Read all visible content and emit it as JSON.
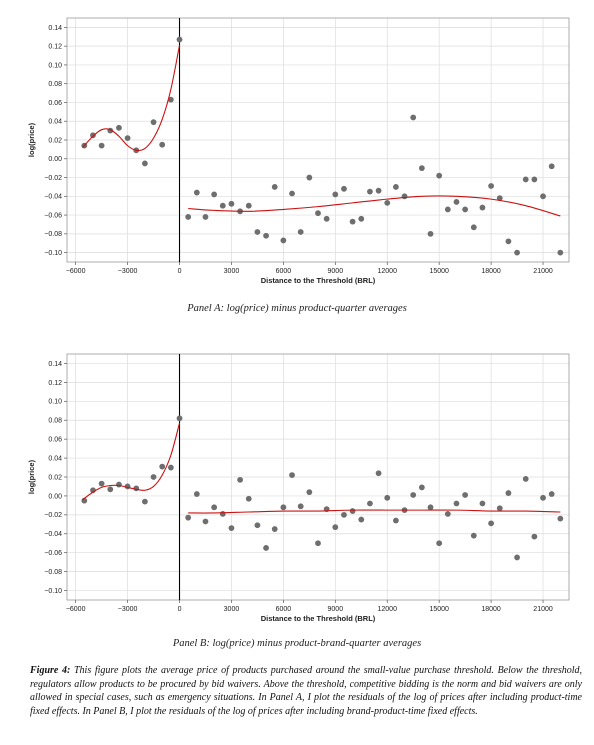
{
  "chart_data": [
    {
      "type": "scatter",
      "panel": "A",
      "caption": "Panel A: log(price) minus product-quarter averages",
      "xlabel": "Distance to the Threshold (BRL)",
      "ylabel": "log(price)",
      "xlim": [
        -6500,
        22500
      ],
      "ylim": [
        -0.11,
        0.15
      ],
      "xticks": [
        -6000,
        -3000,
        0,
        3000,
        6000,
        9000,
        12000,
        15000,
        18000,
        21000
      ],
      "xtick_labels": [
        "−6000",
        "−3000",
        "0",
        "3000",
        "6000",
        "9000",
        "12000",
        "15000",
        "18000",
        "21000"
      ],
      "yticks": [
        -0.1,
        -0.08,
        -0.06,
        -0.04,
        -0.02,
        0.0,
        0.02,
        0.04,
        0.06,
        0.08,
        0.1,
        0.12,
        0.14
      ],
      "ytick_labels": [
        "−0.10",
        "−0.08",
        "−0.06",
        "−0.04",
        "−0.02",
        "0.00",
        "0.02",
        "0.04",
        "0.06",
        "0.08",
        "0.10",
        "0.12",
        "0.14"
      ],
      "grid": true,
      "threshold_x": 0,
      "points": {
        "x": [
          -5500,
          -5000,
          -4500,
          -4000,
          -3500,
          -3000,
          -2500,
          -2000,
          -1500,
          -1000,
          -500,
          0,
          500,
          1000,
          1500,
          2000,
          2500,
          3000,
          3500,
          4000,
          4500,
          5000,
          5500,
          6000,
          6500,
          7000,
          7500,
          8000,
          8500,
          9000,
          9500,
          10000,
          10500,
          11000,
          11500,
          12000,
          12500,
          13000,
          13500,
          14000,
          14500,
          15000,
          15500,
          16000,
          16500,
          17000,
          17500,
          18000,
          18500,
          19000,
          19500,
          20000,
          20500,
          21000,
          21500,
          22000
        ],
        "y": [
          0.014,
          0.025,
          0.014,
          0.03,
          0.033,
          0.022,
          0.009,
          -0.005,
          0.039,
          0.015,
          0.063,
          0.127,
          -0.062,
          -0.036,
          -0.062,
          -0.038,
          -0.05,
          -0.048,
          -0.056,
          -0.05,
          -0.078,
          -0.082,
          -0.03,
          -0.087,
          -0.037,
          -0.078,
          -0.02,
          -0.058,
          -0.064,
          -0.038,
          -0.032,
          -0.067,
          -0.064,
          -0.035,
          -0.034,
          -0.047,
          -0.03,
          -0.04,
          0.044,
          -0.01,
          -0.08,
          -0.018,
          -0.054,
          -0.046,
          -0.054,
          -0.073,
          -0.052,
          -0.029,
          -0.042,
          -0.088,
          -0.1,
          -0.022,
          -0.022,
          -0.04,
          -0.008,
          -0.1
        ]
      },
      "fit_left": {
        "x": [
          -5600,
          -5000,
          -4500,
          -4000,
          -3500,
          -3000,
          -2500,
          -2000,
          -1500,
          -1000,
          -500,
          0
        ],
        "y": [
          0.012,
          0.024,
          0.031,
          0.031,
          0.024,
          0.014,
          0.009,
          0.011,
          0.022,
          0.042,
          0.074,
          0.121
        ]
      },
      "fit_right": {
        "x": [
          500,
          2000,
          4000,
          6000,
          8000,
          10000,
          12000,
          14000,
          16000,
          18000,
          20000,
          22000
        ],
        "y": [
          -0.053,
          -0.055,
          -0.056,
          -0.054,
          -0.051,
          -0.047,
          -0.043,
          -0.04,
          -0.04,
          -0.043,
          -0.05,
          -0.061
        ]
      }
    },
    {
      "type": "scatter",
      "panel": "B",
      "caption": "Panel B: log(price) minus product-brand-quarter averages",
      "xlabel": "Distance to the Threshold (BRL)",
      "ylabel": "log(price)",
      "xlim": [
        -6500,
        22500
      ],
      "ylim": [
        -0.11,
        0.15
      ],
      "xticks": [
        -6000,
        -3000,
        0,
        3000,
        6000,
        9000,
        12000,
        15000,
        18000,
        21000
      ],
      "xtick_labels": [
        "−6000",
        "−3000",
        "0",
        "3000",
        "6000",
        "9000",
        "12000",
        "15000",
        "18000",
        "21000"
      ],
      "yticks": [
        -0.1,
        -0.08,
        -0.06,
        -0.04,
        -0.02,
        0.0,
        0.02,
        0.04,
        0.06,
        0.08,
        0.1,
        0.12,
        0.14
      ],
      "ytick_labels": [
        "−0.10",
        "−0.08",
        "−0.06",
        "−0.04",
        "−0.02",
        "0.00",
        "0.02",
        "0.04",
        "0.06",
        "0.08",
        "0.10",
        "0.12",
        "0.14"
      ],
      "grid": true,
      "threshold_x": 0,
      "points": {
        "x": [
          -5500,
          -5000,
          -4500,
          -4000,
          -3500,
          -3000,
          -2500,
          -2000,
          -1500,
          -1000,
          -500,
          0,
          500,
          1000,
          1500,
          2000,
          2500,
          3000,
          3500,
          4000,
          4500,
          5000,
          5500,
          6000,
          6500,
          7000,
          7500,
          8000,
          8500,
          9000,
          9500,
          10000,
          10500,
          11000,
          11500,
          12000,
          12500,
          13000,
          13500,
          14000,
          14500,
          15000,
          15500,
          16000,
          16500,
          17000,
          17500,
          18000,
          18500,
          19000,
          19500,
          20000,
          20500,
          21000,
          21500,
          22000
        ],
        "y": [
          -0.005,
          0.006,
          0.013,
          0.007,
          0.012,
          0.01,
          0.008,
          -0.006,
          0.02,
          0.031,
          0.03,
          0.082,
          -0.023,
          0.002,
          -0.027,
          -0.012,
          -0.019,
          -0.034,
          0.017,
          -0.003,
          -0.031,
          -0.055,
          -0.035,
          -0.012,
          0.022,
          -0.011,
          0.004,
          -0.05,
          -0.014,
          -0.033,
          -0.02,
          -0.016,
          -0.025,
          -0.008,
          0.024,
          -0.002,
          -0.026,
          -0.015,
          0.001,
          0.009,
          -0.012,
          -0.05,
          -0.019,
          -0.008,
          0.001,
          -0.042,
          -0.008,
          -0.029,
          -0.013,
          0.003,
          -0.065,
          0.018,
          -0.043,
          -0.002,
          0.002,
          -0.024
        ]
      },
      "fit_left": {
        "x": [
          -5600,
          -5000,
          -4500,
          -4000,
          -3500,
          -3000,
          -2500,
          -2000,
          -1500,
          -1000,
          -500,
          0
        ],
        "y": [
          -0.004,
          0.004,
          0.009,
          0.011,
          0.011,
          0.009,
          0.007,
          0.006,
          0.01,
          0.022,
          0.043,
          0.077
        ]
      },
      "fit_right": {
        "x": [
          500,
          2000,
          4000,
          6000,
          8000,
          10000,
          12000,
          14000,
          16000,
          18000,
          20000,
          22000
        ],
        "y": [
          -0.018,
          -0.018,
          -0.017,
          -0.016,
          -0.016,
          -0.015,
          -0.015,
          -0.015,
          -0.015,
          -0.016,
          -0.016,
          -0.017
        ]
      }
    }
  ],
  "colors": {
    "point": "#6e6e6e",
    "fit": "#cc1111",
    "threshold": "#000000",
    "grid": "#dcdcdc",
    "frame": "#9a9a9a"
  },
  "figure_caption": {
    "label": "Figure 4:",
    "text": "This figure plots the average price of products purchased around the small-value purchase threshold. Below the threshold, regulators allow products to be procured by bid waivers. Above the threshold, competitive bidding is the norm and bid waivers are only allowed in special cases, such as emergency situations. In Panel A, I plot the residuals of the log of prices after including product-time fixed effects. In Panel B, I plot the residuals of the log of prices after including brand-product-time fixed effects."
  }
}
